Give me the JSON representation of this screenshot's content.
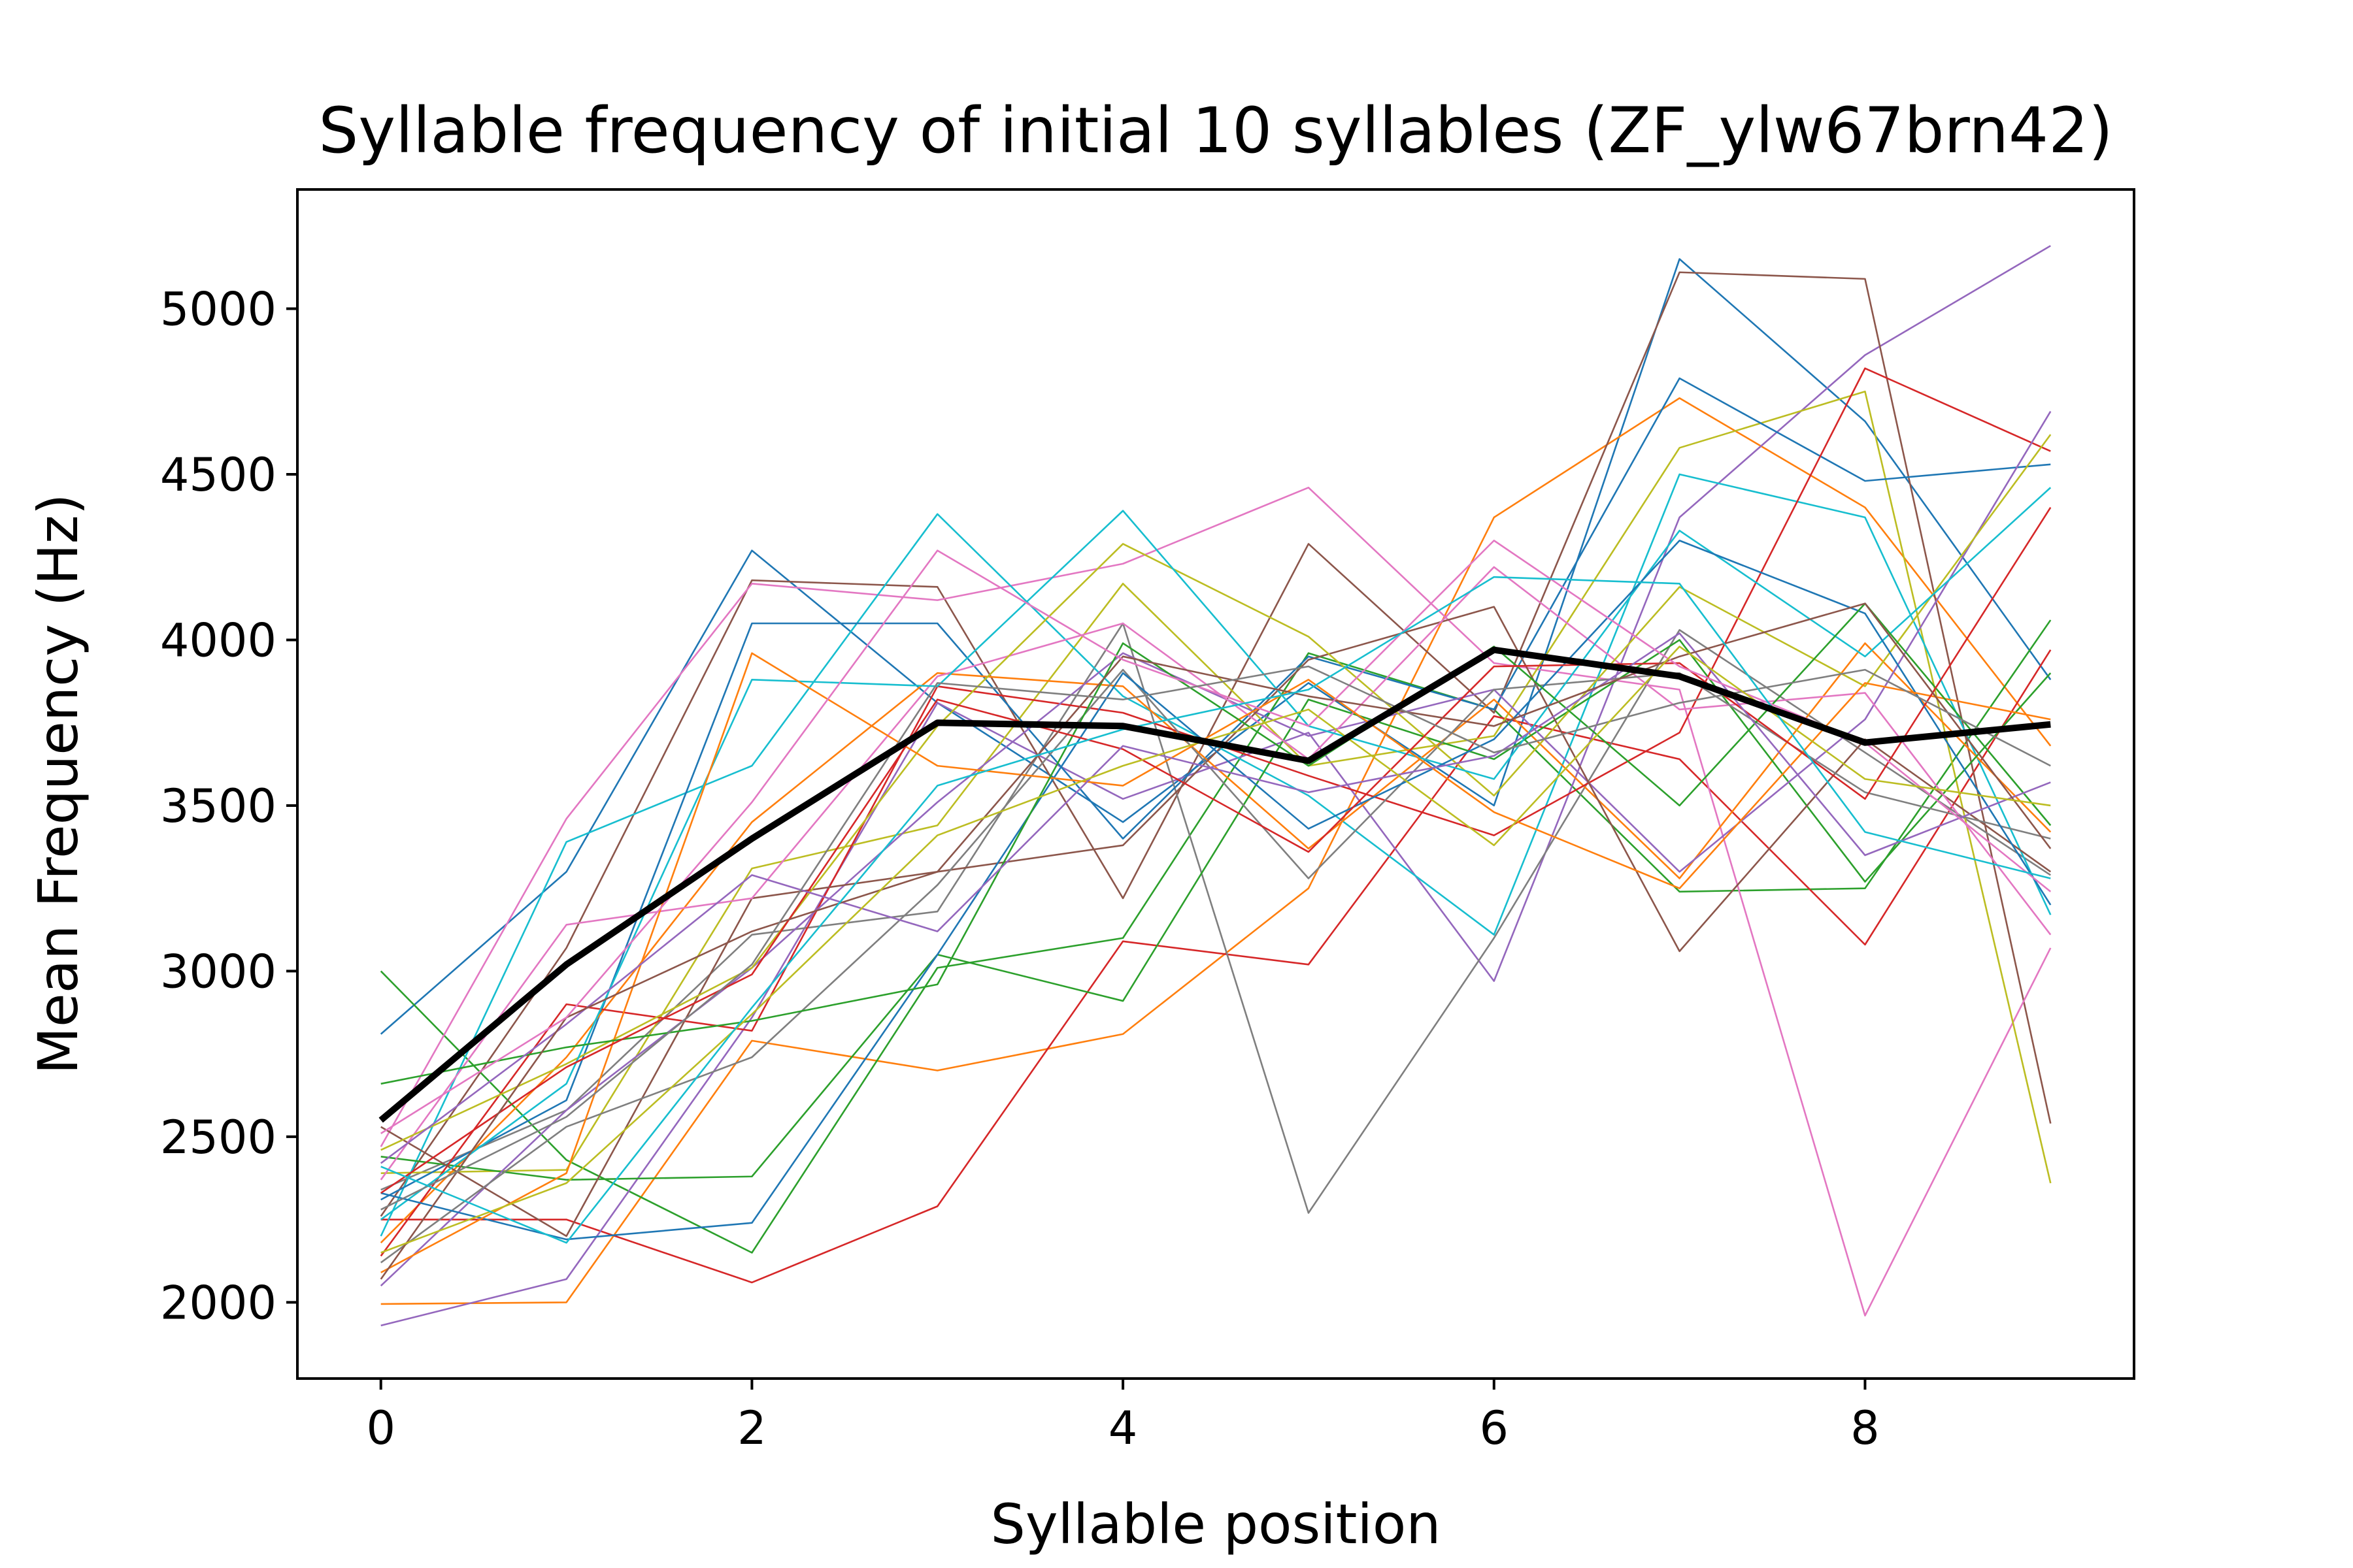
{
  "chart_data": {
    "type": "line",
    "title": "Syllable frequency of initial 10 syllables (ZF_ylw67brn42)",
    "xlabel": "Syllable position",
    "ylabel": "Mean Frequency (Hz)",
    "xlim": [
      -0.45,
      9.45
    ],
    "ylim": [
      1770,
      5360
    ],
    "xticks": [
      0,
      2,
      4,
      6,
      8
    ],
    "yticks": [
      2000,
      2500,
      3000,
      3500,
      4000,
      4500,
      5000
    ],
    "grid": false,
    "legend": "none",
    "x": [
      0,
      1,
      2,
      3,
      4,
      5,
      6,
      7,
      8,
      9
    ],
    "mean_series": {
      "color": "#000000",
      "values": [
        2550,
        3020,
        3400,
        3750,
        3740,
        3635,
        3970,
        3890,
        3690,
        3745
      ]
    },
    "series": [
      {
        "color": "#1f77b4",
        "values": [
          2810,
          3300,
          4270,
          3810,
          3450,
          3870,
          3500,
          5150,
          4660,
          3880
        ]
      },
      {
        "color": "#ff7f0e",
        "values": [
          1995,
          2000,
          2790,
          2700,
          2810,
          3250,
          4370,
          4730,
          4400,
          3680
        ]
      },
      {
        "color": "#2ca02c",
        "values": [
          3000,
          2430,
          2150,
          3010,
          3100,
          3960,
          3790,
          3240,
          3250,
          4060
        ]
      },
      {
        "color": "#d62728",
        "values": [
          2250,
          2250,
          2060,
          2290,
          3090,
          3020,
          3770,
          3640,
          3080,
          3970
        ]
      },
      {
        "color": "#9467bd",
        "values": [
          1930,
          2070,
          2860,
          3810,
          3520,
          3720,
          2970,
          4370,
          4860,
          5190
        ]
      },
      {
        "color": "#8c564b",
        "values": [
          2260,
          3070,
          4180,
          4160,
          3220,
          4290,
          3780,
          5110,
          5090,
          2540
        ]
      },
      {
        "color": "#e377c2",
        "values": [
          2470,
          3460,
          4170,
          4120,
          4230,
          4460,
          3930,
          3850,
          1960,
          3070
        ]
      },
      {
        "color": "#7f7f7f",
        "values": [
          2340,
          2580,
          3110,
          3180,
          4050,
          2270,
          3100,
          4030,
          3660,
          3290
        ]
      },
      {
        "color": "#bcbd22",
        "values": [
          2390,
          2400,
          3310,
          3440,
          4170,
          3620,
          3710,
          4580,
          4750,
          2360
        ]
      },
      {
        "color": "#17becf",
        "values": [
          2200,
          3390,
          3620,
          4380,
          3830,
          3530,
          3110,
          4500,
          4370,
          3170
        ]
      },
      {
        "color": "#1f77b4",
        "values": [
          2310,
          2610,
          4050,
          4050,
          3400,
          3950,
          3790,
          4790,
          4480,
          4530
        ]
      },
      {
        "color": "#ff7f0e",
        "values": [
          2180,
          2740,
          3450,
          3900,
          3860,
          3370,
          3820,
          3280,
          3990,
          3420
        ]
      },
      {
        "color": "#2ca02c",
        "values": [
          2440,
          2370,
          2380,
          3050,
          2910,
          3820,
          3640,
          4000,
          3270,
          3900
        ]
      },
      {
        "color": "#d62728",
        "values": [
          2140,
          2900,
          2820,
          3860,
          3780,
          3590,
          3410,
          3720,
          4820,
          4570
        ]
      },
      {
        "color": "#9467bd",
        "values": [
          2050,
          2580,
          3010,
          3510,
          3960,
          3710,
          3850,
          3300,
          3760,
          4690
        ]
      },
      {
        "color": "#8c564b",
        "values": [
          2530,
          2200,
          3220,
          3300,
          3380,
          3940,
          4100,
          3060,
          3700,
          3300
        ]
      },
      {
        "color": "#e377c2",
        "values": [
          2370,
          3140,
          3220,
          3890,
          4050,
          3640,
          4220,
          3790,
          3840,
          3110
        ]
      },
      {
        "color": "#7f7f7f",
        "values": [
          2120,
          2530,
          2740,
          3260,
          3910,
          3280,
          3850,
          3900,
          3540,
          3400
        ]
      },
      {
        "color": "#bcbd22",
        "values": [
          2460,
          2720,
          3010,
          3740,
          4290,
          4010,
          3530,
          4160,
          3860,
          4620
        ]
      },
      {
        "color": "#17becf",
        "values": [
          2250,
          2660,
          3880,
          3860,
          4390,
          3740,
          3580,
          4330,
          3950,
          4460
        ]
      },
      {
        "color": "#1f77b4",
        "values": [
          2330,
          2190,
          2240,
          3050,
          3900,
          3430,
          3700,
          4300,
          4080,
          3200
        ]
      },
      {
        "color": "#ff7f0e",
        "values": [
          2090,
          2390,
          3960,
          3620,
          3560,
          3880,
          3480,
          3250,
          3870,
          3760
        ]
      },
      {
        "color": "#2ca02c",
        "values": [
          2660,
          2770,
          2850,
          2960,
          3990,
          3620,
          3980,
          3500,
          4110,
          3440
        ]
      },
      {
        "color": "#d62728",
        "values": [
          2330,
          2710,
          2990,
          3820,
          3670,
          3360,
          3920,
          3930,
          3520,
          4400
        ]
      },
      {
        "color": "#9467bd",
        "values": [
          2420,
          2840,
          3290,
          3120,
          3680,
          3540,
          3650,
          4020,
          3350,
          3570
        ]
      },
      {
        "color": "#8c564b",
        "values": [
          2070,
          2860,
          3120,
          3300,
          3950,
          3830,
          3740,
          3950,
          4110,
          3370
        ]
      },
      {
        "color": "#e377c2",
        "values": [
          2510,
          2860,
          3510,
          4270,
          3940,
          3740,
          4300,
          3920,
          3690,
          3240
        ]
      },
      {
        "color": "#7f7f7f",
        "values": [
          2280,
          2560,
          3020,
          3870,
          3820,
          3920,
          3660,
          3810,
          3910,
          3620
        ]
      },
      {
        "color": "#bcbd22",
        "values": [
          2150,
          2360,
          2870,
          3410,
          3620,
          3790,
          3380,
          3980,
          3580,
          3500
        ]
      },
      {
        "color": "#17becf",
        "values": [
          2410,
          2180,
          2890,
          3560,
          3730,
          3850,
          4190,
          4170,
          3420,
          3280
        ]
      }
    ]
  }
}
